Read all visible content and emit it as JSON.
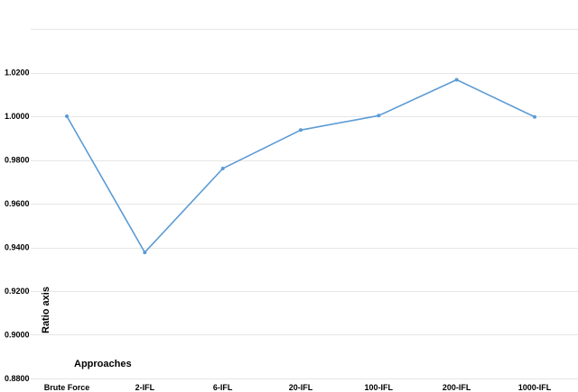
{
  "chart_data": {
    "type": "line",
    "title": "",
    "xlabel": "Approaches",
    "ylabel": "Ratio axis",
    "categories": [
      "Brute Force",
      "2-IFL",
      "6-IFL",
      "20-IFL",
      "100-IFL",
      "200-IFL",
      "1000-IFL"
    ],
    "series": [
      {
        "values": [
          1.0,
          0.9377,
          0.9761,
          0.9937,
          1.0003,
          1.0167,
          0.9997
        ]
      }
    ],
    "ylim": [
      0.88,
      1.04
    ],
    "yticks": [
      "0.8800",
      "0.9000",
      "0.9200",
      "0.9400",
      "0.9600",
      "0.9800",
      "1.0000",
      "1.0200"
    ],
    "ytick_values": [
      0.88,
      0.9,
      0.92,
      0.94,
      0.96,
      0.98,
      1.0,
      1.02
    ],
    "grid": true,
    "legend": "none",
    "colors": {
      "line": "#5b9bd5",
      "grid": "#e6e6e6",
      "text": "#000000"
    }
  }
}
